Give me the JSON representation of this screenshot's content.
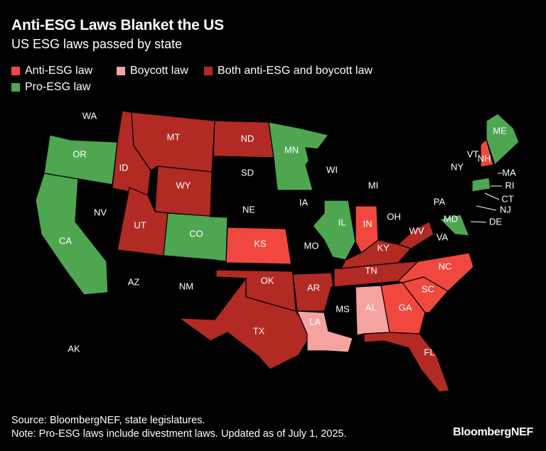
{
  "title": "Anti-ESG Laws Blanket the US",
  "subtitle": "US ESG laws passed by state",
  "legend": [
    {
      "key": "anti",
      "label": "Anti-ESG law",
      "color": "#f0483e"
    },
    {
      "key": "boycott",
      "label": "Boycott law",
      "color": "#f4a3a0"
    },
    {
      "key": "both",
      "label": "Both anti-ESG and boycott law",
      "color": "#b12a24"
    },
    {
      "key": "pro",
      "label": "Pro-ESG law",
      "color": "#4ea651"
    }
  ],
  "colors": {
    "none": "#000000",
    "anti": "#f0483e",
    "boycott": "#f4a3a0",
    "both": "#b12a24",
    "pro": "#4ea651"
  },
  "states": {
    "WA": "none",
    "OR": "pro",
    "CA": "pro",
    "NV": "none",
    "ID": "both",
    "MT": "both",
    "WY": "both",
    "UT": "both",
    "AZ": "none",
    "CO": "pro",
    "NM": "none",
    "ND": "both",
    "SD": "none",
    "NE": "none",
    "KS": "anti",
    "OK": "both",
    "TX": "both",
    "MN": "pro",
    "IA": "none",
    "MO": "none",
    "AR": "both",
    "LA": "boycott",
    "WI": "none",
    "IL": "pro",
    "MI": "none",
    "IN": "anti",
    "OH": "none",
    "KY": "both",
    "TN": "both",
    "MS": "none",
    "AL": "boycott",
    "GA": "anti",
    "FL": "both",
    "SC": "anti",
    "NC": "anti",
    "WV": "both",
    "VA": "none",
    "PA": "none",
    "NY": "none",
    "ME": "pro",
    "NH": "anti",
    "VT": "none",
    "MA": "none",
    "CT": "pro",
    "RI": "none",
    "NJ": "none",
    "DE": "none",
    "MD": "pro",
    "AK": "none",
    "HI": "none"
  },
  "footer": {
    "source": "Source: BloombergNEF, state legislatures.",
    "note": "Note: Pro-ESG laws include divestment laws. Updated as of July 1, 2025."
  },
  "brand": "BloombergNEF"
}
